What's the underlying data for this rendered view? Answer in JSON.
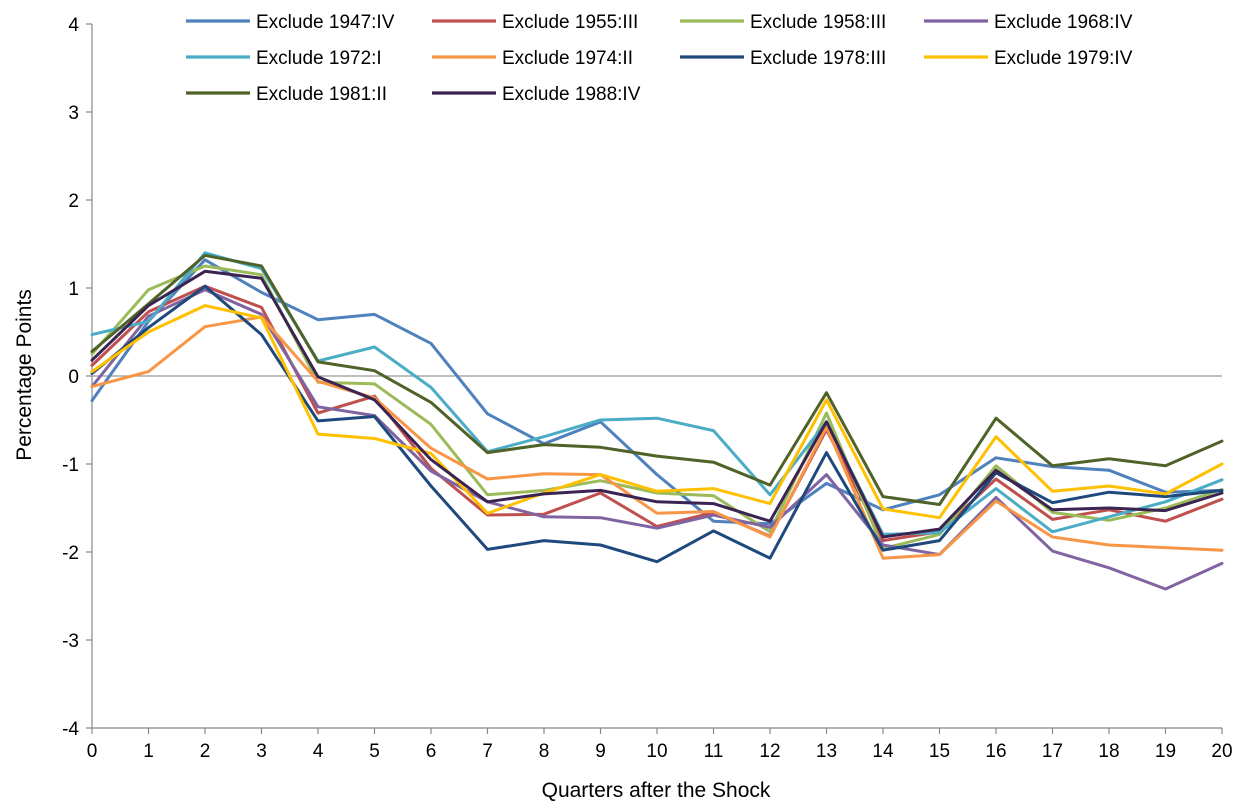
{
  "chart_data": {
    "type": "line",
    "title": "",
    "xlabel": "Quarters after the Shock",
    "ylabel": "Percentage Points",
    "xlim": [
      0,
      20
    ],
    "ylim": [
      -4,
      4
    ],
    "x": [
      0,
      1,
      2,
      3,
      4,
      5,
      6,
      7,
      8,
      9,
      10,
      11,
      12,
      13,
      14,
      15,
      16,
      17,
      18,
      19,
      20
    ],
    "x_ticks": [
      "0",
      "1",
      "2",
      "3",
      "4",
      "5",
      "6",
      "7",
      "8",
      "9",
      "10",
      "11",
      "12",
      "13",
      "14",
      "15",
      "16",
      "17",
      "18",
      "19",
      "20"
    ],
    "y_ticks": [
      "4",
      "3",
      "2",
      "1",
      "0",
      "-1",
      "-2",
      "-3",
      "-4"
    ],
    "y_tick_values": [
      4,
      3,
      2,
      1,
      0,
      -1,
      -2,
      -3,
      -4
    ],
    "grid": false,
    "zero_line": true,
    "legend_position": "top",
    "series": [
      {
        "name": "Exclude 1947:IV",
        "color": "#4F81BD",
        "values": [
          -0.28,
          0.62,
          1.32,
          0.95,
          0.64,
          0.7,
          0.37,
          -0.43,
          -0.77,
          -0.52,
          -1.12,
          -1.65,
          -1.68,
          -1.22,
          -1.52,
          -1.35,
          -0.93,
          -1.03,
          -1.07,
          -1.32,
          -1.3
        ]
      },
      {
        "name": "Exclude 1955:III",
        "color": "#C0504D",
        "values": [
          0.12,
          0.73,
          1.02,
          0.78,
          -0.42,
          -0.23,
          -1.05,
          -1.58,
          -1.57,
          -1.33,
          -1.71,
          -1.55,
          -1.82,
          -0.61,
          -1.87,
          -1.77,
          -1.17,
          -1.63,
          -1.52,
          -1.65,
          -1.4
        ]
      },
      {
        "name": "Exclude 1958:III",
        "color": "#9BBB59",
        "values": [
          0.25,
          0.98,
          1.25,
          1.15,
          -0.07,
          -0.09,
          -0.55,
          -1.35,
          -1.3,
          -1.19,
          -1.33,
          -1.36,
          -1.77,
          -0.42,
          -1.96,
          -1.8,
          -1.02,
          -1.55,
          -1.64,
          -1.5,
          -1.29
        ]
      },
      {
        "name": "Exclude 1968:IV",
        "color": "#8064A2",
        "values": [
          -0.12,
          0.68,
          0.98,
          0.7,
          -0.35,
          -0.45,
          -1.08,
          -1.43,
          -1.6,
          -1.61,
          -1.73,
          -1.58,
          -1.72,
          -1.12,
          -1.92,
          -2.03,
          -1.38,
          -1.99,
          -2.18,
          -2.42,
          -2.13
        ]
      },
      {
        "name": "Exclude 1972:I",
        "color": "#4BACC6",
        "values": [
          0.47,
          0.62,
          1.4,
          1.22,
          0.17,
          0.33,
          -0.13,
          -0.86,
          -0.69,
          -0.5,
          -0.48,
          -0.62,
          -1.35,
          -0.52,
          -1.8,
          -1.78,
          -1.28,
          -1.77,
          -1.6,
          -1.43,
          -1.18
        ]
      },
      {
        "name": "Exclude 1974:II",
        "color": "#F79646",
        "values": [
          -0.12,
          0.05,
          0.56,
          0.67,
          -0.06,
          -0.25,
          -0.82,
          -1.17,
          -1.11,
          -1.12,
          -1.56,
          -1.54,
          -1.83,
          -0.58,
          -2.07,
          -2.03,
          -1.42,
          -1.83,
          -1.92,
          -1.95,
          -1.98
        ]
      },
      {
        "name": "Exclude 1978:III",
        "color": "#1F497D",
        "values": [
          0.03,
          0.55,
          1.02,
          0.47,
          -0.51,
          -0.46,
          -1.25,
          -1.97,
          -1.87,
          -1.92,
          -2.11,
          -1.76,
          -2.07,
          -0.87,
          -1.98,
          -1.87,
          -1.1,
          -1.44,
          -1.32,
          -1.37,
          -1.3
        ]
      },
      {
        "name": "Exclude 1979:IV",
        "color": "#FFC000",
        "values": [
          0.05,
          0.5,
          0.8,
          0.66,
          -0.66,
          -0.71,
          -0.88,
          -1.56,
          -1.33,
          -1.12,
          -1.31,
          -1.28,
          -1.45,
          -0.27,
          -1.51,
          -1.61,
          -0.69,
          -1.31,
          -1.25,
          -1.34,
          -1.0
        ]
      },
      {
        "name": "Exclude 1981:II",
        "color": "#4F6228",
        "values": [
          0.28,
          0.82,
          1.37,
          1.25,
          0.16,
          0.06,
          -0.3,
          -0.87,
          -0.78,
          -0.81,
          -0.91,
          -0.98,
          -1.24,
          -0.19,
          -1.37,
          -1.46,
          -0.48,
          -1.02,
          -0.94,
          -1.02,
          -0.74
        ]
      },
      {
        "name": "Exclude 1988:IV",
        "color": "#3B2352",
        "values": [
          0.18,
          0.8,
          1.19,
          1.11,
          -0.01,
          -0.27,
          -0.95,
          -1.43,
          -1.34,
          -1.3,
          -1.43,
          -1.45,
          -1.65,
          -0.52,
          -1.83,
          -1.74,
          -1.07,
          -1.52,
          -1.5,
          -1.53,
          -1.33
        ]
      }
    ]
  }
}
